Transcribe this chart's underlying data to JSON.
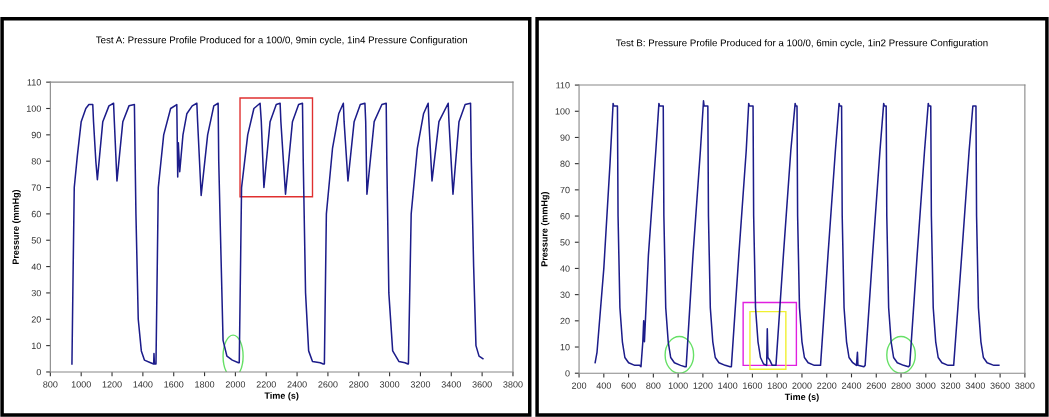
{
  "chart_data": [
    {
      "type": "line",
      "title": "Test A: Pressure Profile Produced for a 100/0, 9min cycle, 1in4 Pressure Configuration",
      "xlabel": "Time (s)",
      "ylabel": "Pressure (mmHg)",
      "grid": false,
      "legend": false,
      "marker": "none",
      "line_style": "solid",
      "xlim": [
        800,
        3800
      ],
      "xticks": [
        800,
        1000,
        1200,
        1400,
        1600,
        1800,
        2000,
        2200,
        2400,
        2600,
        2800,
        3000,
        3200,
        3400,
        3600,
        3800
      ],
      "ylim": [
        0,
        110
      ],
      "yticks": [
        0,
        10,
        20,
        30,
        40,
        50,
        60,
        70,
        80,
        90,
        100,
        110
      ],
      "series": [
        {
          "color": "#1c1c8a",
          "x": [
            940,
            948,
            955,
            975,
            1000,
            1030,
            1050,
            1075,
            1080,
            1095,
            1105,
            1140,
            1180,
            1210,
            1215,
            1232,
            1270,
            1310,
            1345,
            1350,
            1355,
            1370,
            1390,
            1410,
            1450,
            1470,
            1472,
            1475,
            1480,
            1485,
            1500,
            1535,
            1580,
            1620,
            1626,
            1630,
            1639,
            1660,
            1685,
            1720,
            1750,
            1755,
            1778,
            1820,
            1860,
            1888,
            1892,
            1900,
            1920,
            1945,
            1980,
            2020,
            2025,
            2040,
            2080,
            2120,
            2160,
            2168,
            2185,
            2225,
            2265,
            2290,
            2295,
            2325,
            2370,
            2410,
            2435,
            2440,
            2455,
            2475,
            2500,
            2550,
            2570,
            2577,
            2590,
            2630,
            2670,
            2700,
            2705,
            2730,
            2770,
            2810,
            2840,
            2845,
            2853,
            2900,
            2950,
            2978,
            2982,
            2995,
            3020,
            3060,
            3100,
            3119,
            3122,
            3140,
            3180,
            3220,
            3250,
            3255,
            3275,
            3320,
            3380,
            3385,
            3411,
            3450,
            3490,
            3525,
            3530,
            3545,
            3560,
            3580,
            3605
          ],
          "values": [
            3,
            40,
            70,
            82,
            95,
            100,
            101.5,
            101.5,
            95,
            80,
            73,
            95,
            101,
            102,
            95,
            72.5,
            95,
            101,
            101.5,
            80,
            60,
            20,
            8,
            4.5,
            3.5,
            3,
            7,
            3,
            3,
            3,
            70,
            90,
            100,
            101.5,
            74,
            87,
            76,
            90,
            98,
            101,
            102,
            95,
            67,
            90,
            101,
            102,
            80,
            60,
            12,
            6,
            4.5,
            3.5,
            3.5,
            70,
            90,
            100,
            102,
            95,
            70,
            95,
            101.5,
            102,
            95,
            67.5,
            95,
            101.5,
            102,
            80,
            30,
            8,
            4,
            3.5,
            3,
            3,
            60,
            85,
            98,
            102,
            95,
            72.5,
            95,
            101.5,
            102,
            95,
            67.5,
            95,
            101.5,
            102,
            80,
            30,
            8,
            4,
            3.5,
            3,
            3,
            60,
            85,
            98,
            102,
            95,
            72.5,
            95,
            102,
            95,
            67.5,
            95,
            101.5,
            102,
            80,
            40,
            10,
            6,
            5
          ]
        }
      ]
    },
    {
      "type": "line",
      "title": "Test B: Pressure Profile Produced for a 100/0, 6min cycle, 1in2 Pressure Configuration",
      "xlabel": "Time (s)",
      "ylabel": "Pressure (mmHg)",
      "grid": false,
      "legend": false,
      "marker": "none",
      "line_style": "solid",
      "xlim": [
        200,
        3800
      ],
      "xticks": [
        200,
        400,
        600,
        800,
        1000,
        1200,
        1400,
        1600,
        1800,
        2000,
        2200,
        2400,
        2600,
        2800,
        3000,
        3200,
        3400,
        3600,
        3800
      ],
      "ylim": [
        0,
        110
      ],
      "yticks": [
        0,
        10,
        20,
        30,
        40,
        50,
        60,
        70,
        80,
        90,
        100,
        110
      ],
      "series": [
        {
          "color": "#1c1c8a",
          "x": [
            330,
            345,
            400,
            450,
            475,
            480,
            510,
            515,
            530,
            550,
            570,
            600,
            650,
            690,
            700,
            715,
            722,
            728,
            760,
            820,
            845,
            850,
            880,
            885,
            900,
            920,
            940,
            970,
            1020,
            1055,
            1065,
            1120,
            1180,
            1205,
            1210,
            1240,
            1245,
            1260,
            1280,
            1300,
            1330,
            1380,
            1420,
            1430,
            1490,
            1550,
            1570,
            1575,
            1605,
            1610,
            1625,
            1645,
            1665,
            1690,
            1715,
            1720,
            1725,
            1740,
            1760,
            1790,
            1850,
            1910,
            1945,
            1950,
            1960,
            1965,
            1980,
            2000,
            2020,
            2050,
            2100,
            2145,
            2150,
            2210,
            2270,
            2300,
            2305,
            2320,
            2325,
            2340,
            2360,
            2380,
            2410,
            2440,
            2448,
            2452,
            2500,
            2510,
            2570,
            2630,
            2660,
            2665,
            2680,
            2685,
            2700,
            2720,
            2740,
            2770,
            2820,
            2860,
            2870,
            2930,
            2990,
            3020,
            3025,
            3040,
            3045,
            3060,
            3080,
            3100,
            3130,
            3180,
            3225,
            3290,
            3350,
            3380,
            3405,
            3410,
            3425,
            3445,
            3465,
            3495,
            3550,
            3590
          ],
          "values": [
            4,
            8,
            40,
            80,
            103,
            102,
            102,
            60,
            25,
            12,
            6,
            4,
            3,
            3,
            2.5,
            12,
            20,
            12,
            45,
            85,
            103,
            102,
            102,
            60,
            25,
            12,
            6,
            4,
            3,
            2.5,
            2.5,
            45,
            85,
            104,
            102,
            102,
            60,
            25,
            12,
            6,
            4,
            3,
            2.5,
            2.5,
            45,
            85,
            103,
            102,
            102,
            60,
            25,
            12,
            6,
            3.5,
            3,
            17,
            6,
            5,
            3,
            3,
            45,
            85,
            103,
            102,
            102,
            60,
            25,
            12,
            6,
            4,
            3,
            3,
            3,
            45,
            85,
            103,
            102,
            102,
            60,
            25,
            12,
            6,
            4,
            3,
            8,
            3,
            2.5,
            3,
            45,
            85,
            103,
            102,
            102,
            60,
            25,
            12,
            6,
            4,
            3,
            2.5,
            3,
            45,
            85,
            103,
            102,
            102,
            60,
            25,
            12,
            6,
            4,
            3,
            3,
            45,
            85,
            102,
            102,
            60,
            25,
            12,
            6,
            4,
            3,
            3
          ]
        }
      ]
    }
  ]
}
